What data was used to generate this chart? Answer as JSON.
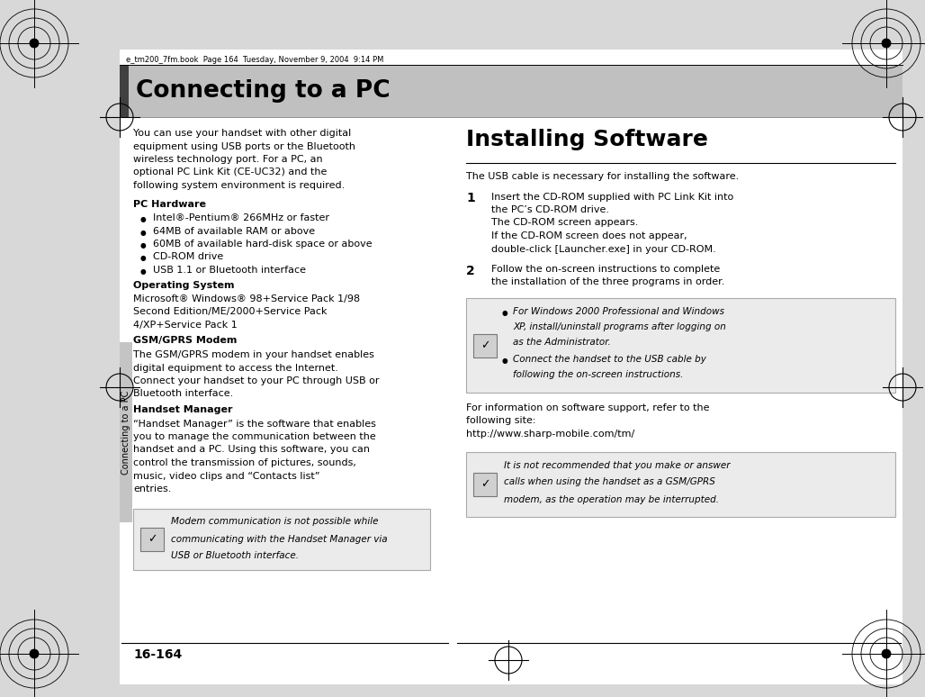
{
  "page_bg": "#ffffff",
  "outer_bg": "#d8d8d8",
  "header_bar_bg": "#c0c0c0",
  "header_bar_dark": "#404040",
  "header_text": "Connecting to a PC",
  "top_meta": "e_tm200_7fm.book  Page 164  Tuesday, November 9, 2004  9:14 PM",
  "page_number": "16-164",
  "sidebar_text": "Connecting to a PC"
}
